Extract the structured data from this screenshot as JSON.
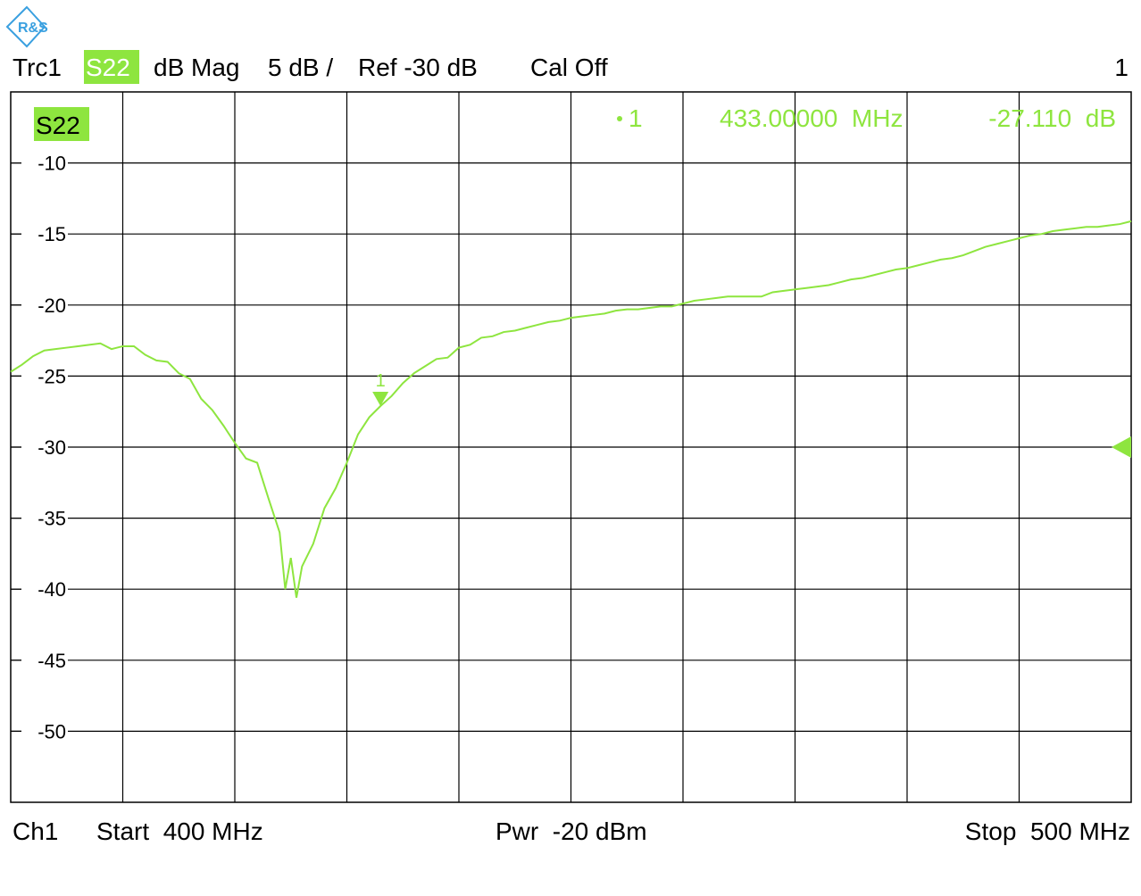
{
  "chart_data": {
    "type": "line",
    "header": {
      "trace": "Trc1",
      "parameter": "S22",
      "format": "dB Mag",
      "scale": "5 dB /",
      "reference": "Ref -30 dB",
      "calibration": "Cal Off",
      "window": "1"
    },
    "trace_label": "S22",
    "footer": {
      "channel": "Ch1",
      "start": "Start  400 MHz",
      "power": "Pwr  -20 dBm",
      "stop": "Stop  500 MHz"
    },
    "xlim": [
      400,
      500
    ],
    "ylim": [
      -55,
      -5
    ],
    "yticks": [
      -50,
      -45,
      -40,
      -35,
      -30,
      -25,
      -20,
      -15,
      -10
    ],
    "grid": true,
    "x_divisions": 10,
    "ref_level": -30,
    "markers": [
      {
        "label": "1",
        "x": 433,
        "y": -27.11,
        "readout_x": "433.00000  MHz",
        "readout_y": "-27.110  dB"
      }
    ],
    "series": [
      {
        "name": "S22",
        "color": "#8ee53f",
        "x": [
          400,
          401,
          402,
          403,
          404,
          405,
          406,
          407,
          408,
          409,
          410,
          411,
          412,
          413,
          414,
          415,
          416,
          417,
          418,
          419,
          420,
          421,
          422,
          423,
          424,
          424.5,
          425,
          425.5,
          426,
          427,
          428,
          429,
          430,
          431,
          432,
          433,
          434,
          435,
          436,
          437,
          438,
          439,
          440,
          441,
          442,
          443,
          444,
          445,
          446,
          447,
          448,
          449,
          450,
          451,
          452,
          453,
          454,
          455,
          456,
          457,
          458,
          459,
          460,
          461,
          462,
          463,
          464,
          465,
          466,
          467,
          468,
          469,
          470,
          471,
          472,
          473,
          474,
          475,
          476,
          477,
          478,
          479,
          480,
          481,
          482,
          483,
          484,
          485,
          486,
          487,
          488,
          489,
          490,
          491,
          492,
          493,
          494,
          495,
          496,
          497,
          498,
          499,
          500
        ],
        "values": [
          -24.7,
          -24.2,
          -23.6,
          -23.2,
          -23.1,
          -23.0,
          -22.9,
          -22.8,
          -22.7,
          -23.1,
          -22.9,
          -22.9,
          -23.5,
          -23.9,
          -24.0,
          -24.8,
          -25.2,
          -26.6,
          -27.4,
          -28.5,
          -29.7,
          -30.8,
          -31.1,
          -33.6,
          -36.0,
          -40.0,
          -37.8,
          -40.6,
          -38.4,
          -36.8,
          -34.3,
          -32.9,
          -31.1,
          -29.1,
          -27.9,
          -27.11,
          -26.4,
          -25.5,
          -24.8,
          -24.3,
          -23.8,
          -23.7,
          -23.0,
          -22.8,
          -22.3,
          -22.2,
          -21.9,
          -21.8,
          -21.6,
          -21.4,
          -21.2,
          -21.1,
          -20.9,
          -20.8,
          -20.7,
          -20.6,
          -20.4,
          -20.3,
          -20.3,
          -20.2,
          -20.1,
          -20.1,
          -19.9,
          -19.7,
          -19.6,
          -19.5,
          -19.4,
          -19.4,
          -19.4,
          -19.4,
          -19.1,
          -19.0,
          -18.9,
          -18.8,
          -18.7,
          -18.6,
          -18.4,
          -18.2,
          -18.1,
          -17.9,
          -17.7,
          -17.5,
          -17.4,
          -17.2,
          -17.0,
          -16.8,
          -16.7,
          -16.5,
          -16.2,
          -15.9,
          -15.7,
          -15.5,
          -15.3,
          -15.1,
          -15.0,
          -14.8,
          -14.7,
          -14.6,
          -14.5,
          -14.5,
          -14.4,
          -14.3,
          -14.1
        ]
      }
    ]
  }
}
